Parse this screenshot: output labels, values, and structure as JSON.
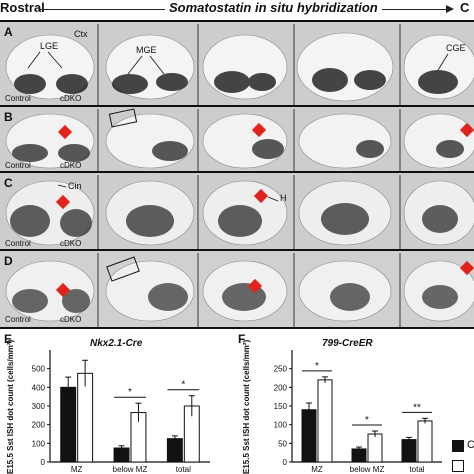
{
  "header": {
    "rostral": "Rostral",
    "title": "Somatostatin in situ hybridization",
    "caudal": "C"
  },
  "panels": {
    "A": {
      "letter": "A",
      "labels": {
        "lge": "LGE",
        "ctx": "Ctx",
        "mge": "MGE",
        "cge": "CGE",
        "control": "Control",
        "cdko": "cDKO"
      }
    },
    "B": {
      "letter": "B",
      "labels": {
        "control": "Control",
        "cdko": "cDKO"
      }
    },
    "C": {
      "letter": "C",
      "labels": {
        "cin": "Cin",
        "h": "H",
        "control": "Control",
        "cdko": "cDKO"
      }
    },
    "D": {
      "letter": "D",
      "labels": {
        "control": "Control",
        "cdko": "cDKO"
      }
    }
  },
  "legend_letter": "C",
  "chart_data": [
    {
      "panel": "E",
      "type": "bar",
      "title": "Nkx2.1-Cre",
      "ylabel": "E15.5 Sst ISH dot count (cells/mm²)",
      "ylim": [
        0,
        600
      ],
      "yticks": [
        0,
        100,
        200,
        300,
        400,
        500
      ],
      "categories": [
        "MZ",
        "below MZ",
        "total"
      ],
      "series": [
        {
          "color": "#111111",
          "values": [
            400,
            75,
            125
          ],
          "errors": [
            55,
            12,
            15
          ]
        },
        {
          "color": "#ffffff",
          "values": [
            475,
            265,
            300
          ],
          "errors": [
            70,
            50,
            55
          ]
        }
      ],
      "significance": [
        "",
        "*",
        "*"
      ]
    },
    {
      "panel": "F",
      "type": "bar",
      "title": "799-CreER",
      "ylabel": "E15.5 Sst ISH dot count (cells/mm²)",
      "ylim": [
        0,
        300
      ],
      "yticks": [
        0,
        50,
        100,
        150,
        200,
        250
      ],
      "categories": [
        "MZ",
        "below MZ",
        "total"
      ],
      "series": [
        {
          "color": "#111111",
          "values": [
            140,
            35,
            60
          ],
          "errors": [
            18,
            5,
            6
          ]
        },
        {
          "color": "#ffffff",
          "values": [
            220,
            75,
            110
          ],
          "errors": [
            8,
            8,
            7
          ]
        }
      ],
      "significance": [
        "*",
        "*",
        "**"
      ]
    }
  ]
}
